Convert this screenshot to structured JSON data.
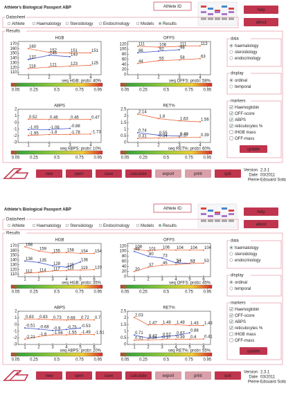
{
  "screens": [
    {
      "title": "Athlete's Biological Passport ABP",
      "athlete_id": "Athlete ID",
      "buttons": [
        "help",
        "about"
      ],
      "datasheet": {
        "label": "Datasheet",
        "tabs": [
          "Athlete",
          "Haematology",
          "Steroidology",
          "Endocrinology",
          "Models",
          "Results"
        ],
        "selected": 5
      },
      "results_label": "Results",
      "charts": [
        {
          "type": "line",
          "title": "HGB",
          "x": [
            1,
            2,
            3,
            4
          ],
          "xticks": [
            1,
            2,
            3,
            4
          ],
          "xlim": [
            0.5,
            4.5
          ],
          "ylim": [
            105,
            175
          ],
          "yticks": [
            110,
            120,
            130,
            140,
            150,
            160,
            170
          ],
          "series": [
            {
              "color": "#e8663a",
              "values": [
                160,
                152,
                151,
                151
              ]
            },
            {
              "color": "#3d4fc4",
              "values": [
                137,
                146,
                143,
                null
              ]
            },
            {
              "color": "#e8663a",
              "values": [
                118,
                121,
                123,
                125
              ]
            }
          ],
          "caption": "seq HGB: prob= 40%",
          "scale_lim": [
            0,
            1
          ],
          "scale_ticks": [
            0.05,
            0.25,
            0.5,
            0.75,
            0.95
          ]
        },
        {
          "type": "line",
          "title": "OFFS",
          "x": [
            1,
            2,
            3,
            4
          ],
          "xticks": [
            1,
            2,
            3,
            4
          ],
          "xlim": [
            0.5,
            4.5
          ],
          "ylim": [
            0,
            130
          ],
          "yticks": [
            0,
            20,
            40,
            60,
            80,
            100,
            120
          ],
          "series": [
            {
              "color": "#e8663a",
              "values": [
                111,
                108,
                111,
                113
              ]
            },
            {
              "color": "#3d4fc4",
              "values": [
                86,
                92,
                98,
                null
              ]
            },
            {
              "color": "#e8663a",
              "values": [
                44,
                55,
                58,
                63
              ]
            }
          ],
          "caption": "seq OFFS: prob= 58%",
          "scale_lim": [
            0,
            1
          ],
          "scale_ticks": [
            0.05,
            0.25,
            0.5,
            0.75,
            0.95
          ]
        },
        {
          "type": "line",
          "title": "ABPS",
          "x": [
            1,
            2,
            3,
            4
          ],
          "xticks": [
            1,
            2,
            3,
            4
          ],
          "xlim": [
            0.5,
            4.5
          ],
          "ylim": [
            -3,
            2
          ],
          "yticks": [
            -3,
            -2,
            -1,
            0,
            1,
            2
          ],
          "series": [
            {
              "color": "#e8663a",
              "values": [
                0.52,
                0.46,
                0.46,
                0.47
              ]
            },
            {
              "color": "#3d4fc4",
              "values": [
                -1.05,
                -1.06,
                -0.88,
                null
              ]
            },
            {
              "color": "#e8663a",
              "values": [
                -1.95,
                -1.8,
                -1.78,
                -1.73
              ]
            }
          ],
          "caption": "seq ABPS: prob= 10%",
          "scale_lim": [
            0,
            1
          ],
          "scale_ticks": [
            0.05,
            0.25,
            0.5,
            0.75,
            0.95
          ]
        },
        {
          "type": "line",
          "title": "RET%",
          "x": [
            1,
            2,
            3,
            4
          ],
          "xticks": [
            1,
            2,
            3,
            4
          ],
          "xlim": [
            0.5,
            4.5
          ],
          "ylim": [
            0,
            2.5
          ],
          "yticks": [
            0,
            0.5,
            1,
            1.5,
            2,
            2.5
          ],
          "series": [
            {
              "color": "#e8663a",
              "values": [
                2.14,
                1.8,
                1.63,
                1.56
              ]
            },
            {
              "color": "#3d4fc4",
              "values": [
                0.74,
                0.55,
                0.48,
                null
              ]
            },
            {
              "color": "#e8663a",
              "values": [
                0.31,
                0.34,
                0.37,
                0.39
              ]
            }
          ],
          "caption": "seq RET%: prob= 60%",
          "scale_lim": [
            0,
            1
          ],
          "scale_ticks": [
            0.05,
            0.25,
            0.5,
            0.75,
            0.95
          ]
        }
      ],
      "side": {
        "data": {
          "label": "data",
          "options": [
            "haematology",
            "steroidology",
            "endocrinology"
          ],
          "selected": 0
        },
        "display": {
          "label": "display",
          "options": [
            "ordinal",
            "temporal"
          ],
          "selected": 0
        },
        "markers": {
          "label": "markers",
          "options": [
            "Haemoglobin",
            "OFF-score",
            "ABPS",
            "reticulocytes %",
            "tHGB mass",
            "OFF-mass"
          ],
          "checked": [
            true,
            true,
            true,
            true,
            false,
            false
          ],
          "button": "update"
        }
      },
      "toolbar": [
        "new",
        "open",
        "save",
        "calculate",
        "export",
        "print",
        "quit"
      ],
      "toolbar_disabled": [
        4,
        5
      ],
      "info": [
        [
          "Version",
          "2.3.1"
        ],
        [
          "Date",
          "03/2011"
        ]
      ],
      "author": "Pierre-Edouard Sottas"
    },
    {
      "title": "Athlete's Biological Passport ABP",
      "athlete_id": "Athlete ID",
      "buttons": [
        "help",
        "about"
      ],
      "datasheet": {
        "label": "Datasheet",
        "tabs": [
          "Athlete",
          "Haematology",
          "Steroidology",
          "Endocrinology",
          "Models",
          "Results"
        ],
        "selected": 5
      },
      "results_label": "Results",
      "charts": [
        {
          "type": "line",
          "title": "HGB",
          "x": [
            1,
            2,
            3,
            4,
            5,
            6
          ],
          "xticks": [
            1,
            2,
            3,
            4,
            5,
            6
          ],
          "xlim": [
            0.5,
            6.5
          ],
          "ylim": [
            105,
            175
          ],
          "yticks": [
            110,
            120,
            130,
            140,
            150,
            160,
            170
          ],
          "series": [
            {
              "color": "#e8663a",
              "values": [
                168,
                159,
                155,
                156,
                154,
                154
              ]
            },
            {
              "color": "#3d4fc4",
              "values": [
                138,
                135,
                128,
                125,
                136,
                null
              ]
            },
            {
              "color": "#e8663a",
              "values": [
                112,
                114,
                117,
                118,
                119,
                120
              ]
            }
          ],
          "caption": "seq HGB: prob= 35%",
          "scale_lim": [
            0,
            1
          ],
          "scale_ticks": [
            0.05,
            0.25,
            0.5,
            0.75,
            0.95
          ]
        },
        {
          "type": "line",
          "title": "OFFS",
          "x": [
            1,
            2,
            3,
            4,
            5,
            6
          ],
          "xticks": [
            1,
            2,
            3,
            4,
            5,
            6
          ],
          "xlim": [
            0.5,
            6.5
          ],
          "ylim": [
            0,
            130
          ],
          "yticks": [
            0,
            20,
            40,
            60,
            80,
            100,
            120
          ],
          "series": [
            {
              "color": "#e8663a",
              "values": [
                108,
                101,
                106,
                104,
                104,
                104
              ]
            },
            {
              "color": "#3d4fc4",
              "values": [
                99,
                80,
                73,
                54,
                52,
                null
              ]
            },
            {
              "color": "#e8663a",
              "values": [
                20,
                37,
                45,
                47,
                51,
                53
              ]
            }
          ],
          "caption": "seq OFFS: prob= 45%",
          "scale_lim": [
            0,
            1
          ],
          "scale_ticks": [
            0.05,
            0.25,
            0.5,
            0.75,
            0.95
          ]
        },
        {
          "type": "line",
          "title": "ABPS",
          "x": [
            1,
            2,
            3,
            4,
            5,
            6
          ],
          "xticks": [
            1,
            2,
            3,
            4,
            5,
            6
          ],
          "xlim": [
            0.5,
            6.5
          ],
          "ylim": [
            -3,
            2
          ],
          "yticks": [
            -3,
            -2,
            -1,
            0,
            1,
            2
          ],
          "series": [
            {
              "color": "#e8663a",
              "values": [
                0.83,
                0.83,
                0.73,
                0.68,
                0.72,
                0.7
              ]
            },
            {
              "color": "#3d4fc4",
              "values": [
                -0.51,
                -0.68,
                -0.9,
                -0.75,
                -0.53,
                null
              ]
            },
            {
              "color": "#e8663a",
              "values": [
                -2.21,
                -1.8,
                -1.56,
                -1.55,
                -1.49,
                -1.51
              ]
            }
          ],
          "caption": "seq ABPS: prob= 20%",
          "scale_lim": [
            0,
            1
          ],
          "scale_ticks": [
            0.05,
            0.25,
            0.5,
            0.75,
            0.95
          ]
        },
        {
          "type": "line",
          "title": "RET%",
          "x": [
            1,
            2,
            3,
            4,
            5,
            6
          ],
          "xticks": [
            1,
            2,
            3,
            4,
            5,
            6
          ],
          "xlim": [
            0.5,
            6.5
          ],
          "ylim": [
            0,
            2.5
          ],
          "yticks": [
            0,
            0.5,
            1,
            1.5,
            2,
            2.5
          ],
          "series": [
            {
              "color": "#e8663a",
              "values": [
                2.03,
                1.47,
                1.49,
                1.49,
                1.43,
                1.43
              ]
            },
            {
              "color": "#3d4fc4",
              "values": [
                0.71,
                0.47,
                0.57,
                0.67,
                0.88,
                null
              ]
            },
            {
              "color": "#e8663a",
              "values": [
                0.31,
                0.34,
                0.37,
                0.39,
                0.4,
                0.41
              ]
            }
          ],
          "caption": "seq RET%: prob= 55%",
          "scale_lim": [
            0,
            1
          ],
          "scale_ticks": [
            0.05,
            0.25,
            0.5,
            0.75,
            0.95
          ]
        }
      ],
      "side": {
        "data": {
          "label": "data",
          "options": [
            "haematology",
            "steroidology",
            "endocrinology"
          ],
          "selected": 0
        },
        "display": {
          "label": "display",
          "options": [
            "ordinal",
            "temporal"
          ],
          "selected": 0
        },
        "markers": {
          "label": "markers",
          "options": [
            "Haemoglobin",
            "OFF-score",
            "ABPS",
            "reticulocytes %",
            "tHGB mass",
            "OFF-mass"
          ],
          "checked": [
            true,
            true,
            true,
            true,
            false,
            false
          ],
          "button": "update"
        }
      },
      "toolbar": [
        "new",
        "open",
        "save",
        "calculate",
        "export",
        "print",
        "quit"
      ],
      "toolbar_disabled": [
        4,
        5
      ],
      "info": [
        [
          "Version",
          "2.3.1"
        ],
        [
          "Date",
          "03/2011"
        ]
      ],
      "author": "Pierre-Edouard Sottas"
    }
  ]
}
